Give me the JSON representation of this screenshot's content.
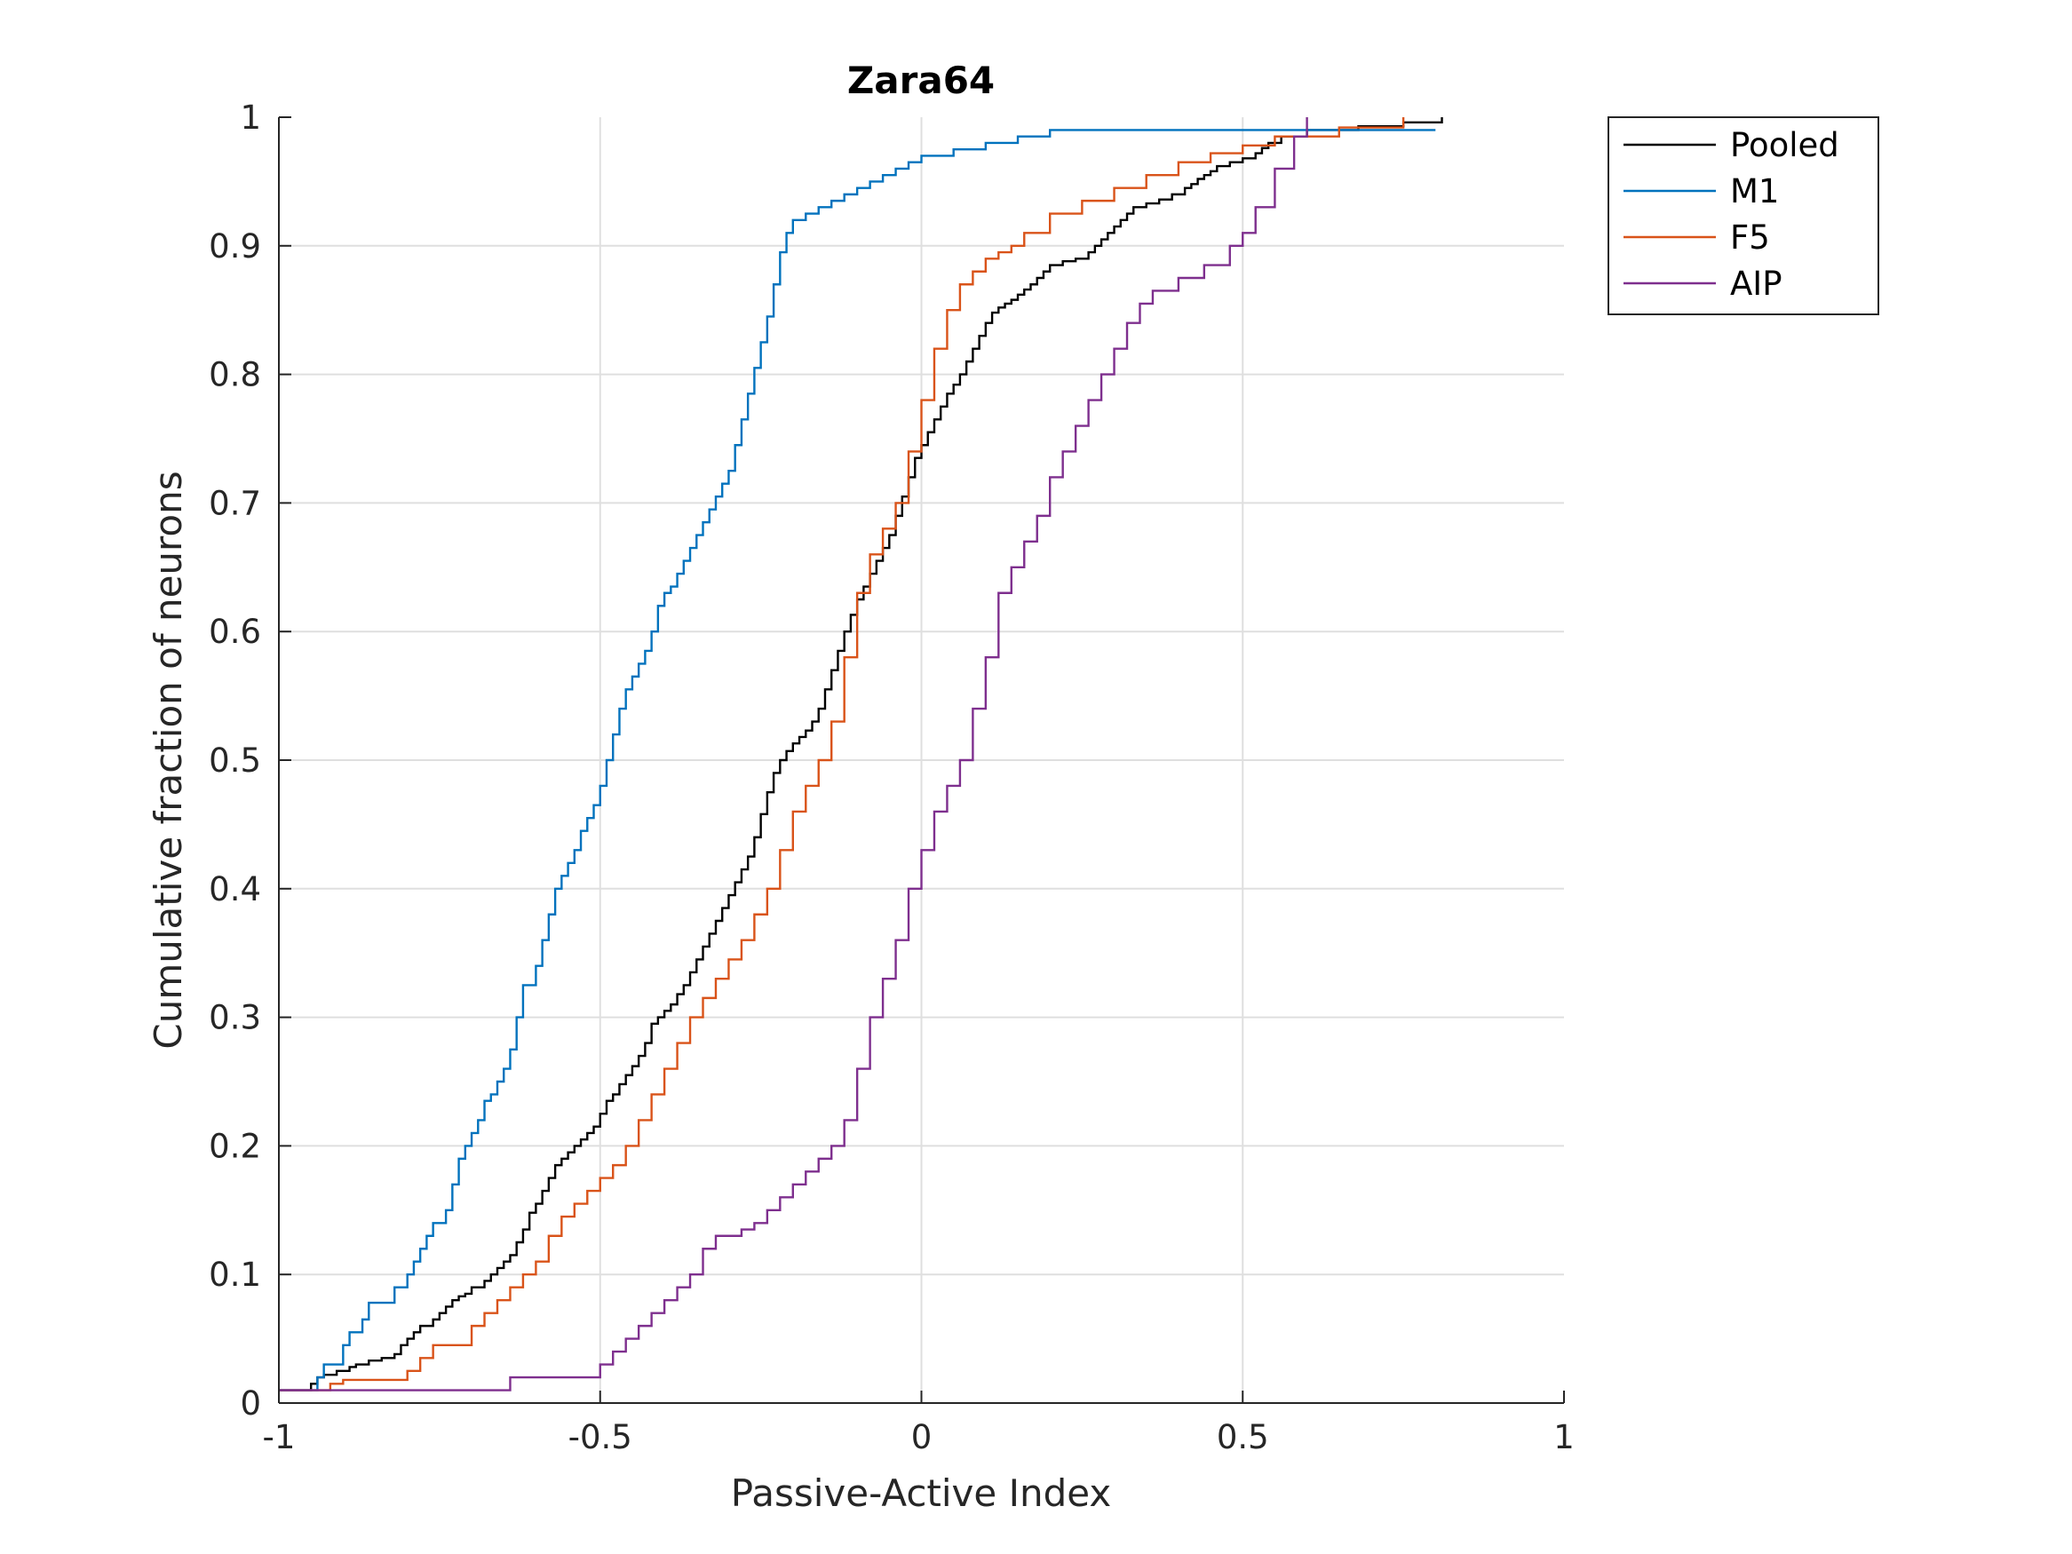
{
  "chart_data": {
    "type": "line",
    "step": true,
    "title": "Zara64",
    "xlabel": "Passive-Active Index",
    "ylabel": "Cumulative fraction of neurons",
    "xlim": [
      -1,
      1
    ],
    "ylim": [
      0,
      1
    ],
    "xticks": [
      -1,
      -0.5,
      0,
      0.5,
      1
    ],
    "xtick_labels": [
      "-1",
      "-0.5",
      "0",
      "0.5",
      "1"
    ],
    "yticks": [
      0,
      0.1,
      0.2,
      0.3,
      0.4,
      0.5,
      0.6,
      0.7,
      0.8,
      0.9,
      1
    ],
    "ytick_labels": [
      "0",
      "0.1",
      "0.2",
      "0.3",
      "0.4",
      "0.5",
      "0.6",
      "0.7",
      "0.8",
      "0.9",
      "1"
    ],
    "grid": true,
    "legend_position": "outside-top-right",
    "series": [
      {
        "name": "Pooled",
        "color": "#000000",
        "x": [
          -1,
          -0.95,
          -0.94,
          -0.93,
          -0.91,
          -0.89,
          -0.88,
          -0.86,
          -0.84,
          -0.82,
          -0.81,
          -0.8,
          -0.79,
          -0.78,
          -0.76,
          -0.75,
          -0.74,
          -0.73,
          -0.72,
          -0.71,
          -0.7,
          -0.68,
          -0.67,
          -0.66,
          -0.65,
          -0.64,
          -0.63,
          -0.62,
          -0.61,
          -0.6,
          -0.59,
          -0.58,
          -0.57,
          -0.56,
          -0.55,
          -0.54,
          -0.53,
          -0.52,
          -0.51,
          -0.5,
          -0.49,
          -0.48,
          -0.47,
          -0.46,
          -0.45,
          -0.44,
          -0.43,
          -0.42,
          -0.41,
          -0.4,
          -0.39,
          -0.38,
          -0.37,
          -0.36,
          -0.35,
          -0.34,
          -0.33,
          -0.32,
          -0.31,
          -0.3,
          -0.29,
          -0.28,
          -0.27,
          -0.26,
          -0.25,
          -0.24,
          -0.23,
          -0.22,
          -0.21,
          -0.2,
          -0.19,
          -0.18,
          -0.17,
          -0.16,
          -0.15,
          -0.14,
          -0.13,
          -0.12,
          -0.11,
          -0.1,
          -0.09,
          -0.08,
          -0.07,
          -0.06,
          -0.05,
          -0.04,
          -0.03,
          -0.02,
          -0.01,
          0,
          0.01,
          0.02,
          0.03,
          0.04,
          0.05,
          0.06,
          0.07,
          0.08,
          0.09,
          0.1,
          0.11,
          0.12,
          0.13,
          0.14,
          0.15,
          0.16,
          0.17,
          0.18,
          0.19,
          0.2,
          0.22,
          0.24,
          0.26,
          0.27,
          0.28,
          0.29,
          0.3,
          0.31,
          0.32,
          0.33,
          0.35,
          0.37,
          0.39,
          0.41,
          0.42,
          0.43,
          0.44,
          0.45,
          0.46,
          0.48,
          0.5,
          0.52,
          0.53,
          0.54,
          0.56,
          0.6,
          0.68,
          0.75,
          0.81
        ],
        "y": [
          0.01,
          0.015,
          0.02,
          0.022,
          0.025,
          0.028,
          0.03,
          0.033,
          0.035,
          0.038,
          0.045,
          0.05,
          0.055,
          0.06,
          0.065,
          0.07,
          0.075,
          0.08,
          0.083,
          0.085,
          0.09,
          0.095,
          0.1,
          0.105,
          0.11,
          0.115,
          0.125,
          0.135,
          0.148,
          0.155,
          0.165,
          0.175,
          0.185,
          0.19,
          0.195,
          0.2,
          0.205,
          0.21,
          0.215,
          0.225,
          0.235,
          0.24,
          0.248,
          0.255,
          0.262,
          0.27,
          0.28,
          0.295,
          0.3,
          0.305,
          0.31,
          0.318,
          0.325,
          0.335,
          0.345,
          0.355,
          0.365,
          0.375,
          0.385,
          0.395,
          0.405,
          0.415,
          0.425,
          0.44,
          0.458,
          0.475,
          0.49,
          0.5,
          0.507,
          0.513,
          0.518,
          0.523,
          0.53,
          0.54,
          0.555,
          0.57,
          0.585,
          0.6,
          0.613,
          0.625,
          0.635,
          0.645,
          0.655,
          0.665,
          0.675,
          0.69,
          0.705,
          0.72,
          0.735,
          0.745,
          0.755,
          0.765,
          0.775,
          0.785,
          0.792,
          0.8,
          0.81,
          0.82,
          0.83,
          0.84,
          0.848,
          0.852,
          0.855,
          0.858,
          0.862,
          0.866,
          0.87,
          0.875,
          0.88,
          0.885,
          0.888,
          0.89,
          0.895,
          0.9,
          0.905,
          0.91,
          0.915,
          0.92,
          0.925,
          0.93,
          0.933,
          0.936,
          0.94,
          0.945,
          0.948,
          0.952,
          0.955,
          0.958,
          0.962,
          0.965,
          0.968,
          0.972,
          0.976,
          0.98,
          0.985,
          0.99,
          0.993,
          0.996,
          1
        ]
      },
      {
        "name": "M1",
        "color": "#0072bd",
        "x": [
          -1,
          -0.94,
          -0.93,
          -0.9,
          -0.89,
          -0.87,
          -0.86,
          -0.82,
          -0.8,
          -0.79,
          -0.78,
          -0.77,
          -0.76,
          -0.74,
          -0.73,
          -0.72,
          -0.71,
          -0.7,
          -0.69,
          -0.68,
          -0.67,
          -0.66,
          -0.65,
          -0.64,
          -0.63,
          -0.62,
          -0.6,
          -0.59,
          -0.58,
          -0.57,
          -0.56,
          -0.55,
          -0.54,
          -0.53,
          -0.52,
          -0.51,
          -0.5,
          -0.49,
          -0.48,
          -0.47,
          -0.46,
          -0.45,
          -0.44,
          -0.43,
          -0.42,
          -0.41,
          -0.4,
          -0.39,
          -0.38,
          -0.37,
          -0.36,
          -0.35,
          -0.34,
          -0.33,
          -0.32,
          -0.31,
          -0.3,
          -0.29,
          -0.28,
          -0.27,
          -0.26,
          -0.25,
          -0.24,
          -0.23,
          -0.22,
          -0.21,
          -0.2,
          -0.18,
          -0.16,
          -0.14,
          -0.12,
          -0.1,
          -0.08,
          -0.06,
          -0.04,
          -0.02,
          0,
          0.05,
          0.1,
          0.15,
          0.2,
          0.4,
          0.6,
          0.8
        ],
        "y": [
          0.01,
          0.02,
          0.03,
          0.045,
          0.055,
          0.065,
          0.078,
          0.09,
          0.1,
          0.11,
          0.12,
          0.13,
          0.14,
          0.15,
          0.17,
          0.19,
          0.2,
          0.21,
          0.22,
          0.235,
          0.24,
          0.25,
          0.26,
          0.275,
          0.3,
          0.325,
          0.34,
          0.36,
          0.38,
          0.4,
          0.41,
          0.42,
          0.43,
          0.445,
          0.455,
          0.465,
          0.48,
          0.5,
          0.52,
          0.54,
          0.555,
          0.565,
          0.575,
          0.585,
          0.6,
          0.62,
          0.63,
          0.635,
          0.645,
          0.655,
          0.665,
          0.675,
          0.685,
          0.695,
          0.705,
          0.715,
          0.725,
          0.745,
          0.765,
          0.785,
          0.805,
          0.825,
          0.845,
          0.87,
          0.895,
          0.91,
          0.92,
          0.925,
          0.93,
          0.935,
          0.94,
          0.945,
          0.95,
          0.955,
          0.96,
          0.965,
          0.97,
          0.975,
          0.98,
          0.985,
          0.99,
          0.99,
          0.99,
          0.99
        ]
      },
      {
        "name": "F5",
        "color": "#d95319",
        "x": [
          -1,
          -0.92,
          -0.9,
          -0.8,
          -0.78,
          -0.76,
          -0.7,
          -0.68,
          -0.66,
          -0.64,
          -0.62,
          -0.6,
          -0.58,
          -0.56,
          -0.54,
          -0.52,
          -0.5,
          -0.48,
          -0.46,
          -0.44,
          -0.42,
          -0.4,
          -0.38,
          -0.36,
          -0.34,
          -0.32,
          -0.3,
          -0.28,
          -0.26,
          -0.24,
          -0.22,
          -0.2,
          -0.18,
          -0.16,
          -0.14,
          -0.12,
          -0.1,
          -0.08,
          -0.06,
          -0.04,
          -0.02,
          0,
          0.02,
          0.04,
          0.06,
          0.08,
          0.1,
          0.12,
          0.14,
          0.16,
          0.2,
          0.25,
          0.3,
          0.35,
          0.4,
          0.45,
          0.5,
          0.55,
          0.65,
          0.75
        ],
        "y": [
          0.01,
          0.015,
          0.018,
          0.025,
          0.035,
          0.045,
          0.06,
          0.07,
          0.08,
          0.09,
          0.1,
          0.11,
          0.13,
          0.145,
          0.155,
          0.165,
          0.175,
          0.185,
          0.2,
          0.22,
          0.24,
          0.26,
          0.28,
          0.3,
          0.315,
          0.33,
          0.345,
          0.36,
          0.38,
          0.4,
          0.43,
          0.46,
          0.48,
          0.5,
          0.53,
          0.58,
          0.63,
          0.66,
          0.68,
          0.7,
          0.74,
          0.78,
          0.82,
          0.85,
          0.87,
          0.88,
          0.89,
          0.895,
          0.9,
          0.91,
          0.925,
          0.935,
          0.945,
          0.955,
          0.965,
          0.972,
          0.978,
          0.985,
          0.992,
          1
        ]
      },
      {
        "name": "AIP",
        "color": "#7e2f8e",
        "x": [
          -1,
          -0.64,
          -0.5,
          -0.48,
          -0.46,
          -0.44,
          -0.42,
          -0.4,
          -0.38,
          -0.36,
          -0.34,
          -0.32,
          -0.3,
          -0.28,
          -0.26,
          -0.24,
          -0.22,
          -0.2,
          -0.18,
          -0.16,
          -0.14,
          -0.12,
          -0.1,
          -0.08,
          -0.06,
          -0.04,
          -0.02,
          0,
          0.02,
          0.04,
          0.06,
          0.08,
          0.1,
          0.12,
          0.14,
          0.16,
          0.18,
          0.2,
          0.22,
          0.24,
          0.26,
          0.28,
          0.3,
          0.32,
          0.34,
          0.36,
          0.4,
          0.44,
          0.48,
          0.5,
          0.52,
          0.55,
          0.58,
          0.6
        ],
        "y": [
          0.01,
          0.02,
          0.03,
          0.04,
          0.05,
          0.06,
          0.07,
          0.08,
          0.09,
          0.1,
          0.12,
          0.13,
          0.13,
          0.135,
          0.14,
          0.15,
          0.16,
          0.17,
          0.18,
          0.19,
          0.2,
          0.22,
          0.26,
          0.3,
          0.33,
          0.36,
          0.4,
          0.43,
          0.46,
          0.48,
          0.5,
          0.54,
          0.58,
          0.63,
          0.65,
          0.67,
          0.69,
          0.72,
          0.74,
          0.76,
          0.78,
          0.8,
          0.82,
          0.84,
          0.855,
          0.865,
          0.875,
          0.885,
          0.9,
          0.91,
          0.93,
          0.96,
          0.985,
          1
        ]
      }
    ]
  }
}
